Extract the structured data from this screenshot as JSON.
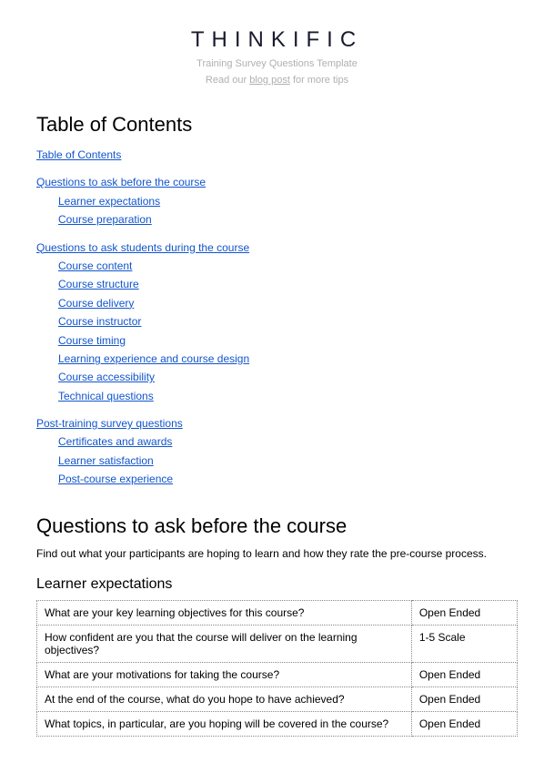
{
  "header": {
    "logo_text": "THINKIFIC",
    "subtitle_prefix": "Training Survey Questions Template",
    "subtitle_read": "Read our ",
    "subtitle_link": "blog post",
    "subtitle_suffix": " for more tips"
  },
  "toc": {
    "title": "Table of Contents",
    "groups": [
      {
        "top": "Table of Contents",
        "children": []
      },
      {
        "top": "Questions to ask before the course",
        "children": [
          "Learner expectations",
          "Course preparation"
        ]
      },
      {
        "top": "Questions to ask students during the course",
        "children": [
          "Course content",
          "Course structure",
          "Course delivery",
          "Course instructor",
          "Course timing",
          "Learning experience and course design",
          "Course accessibility",
          "Technical questions"
        ]
      },
      {
        "top": "Post-training survey questions",
        "children": [
          "Certificates and awards",
          "Learner satisfaction",
          "Post-course experience"
        ]
      }
    ]
  },
  "section1": {
    "title": "Questions to ask before the course",
    "intro": "Find out what your participants are hoping to learn and how they rate the pre-course process.",
    "sub1": {
      "title": "Learner expectations",
      "rows": [
        {
          "q": "What are your key learning objectives for this course?",
          "t": "Open Ended"
        },
        {
          "q": "How confident are you that the course will deliver on the learning objectives?",
          "t": "1-5 Scale"
        },
        {
          "q": "What are your motivations for taking the course?",
          "t": "Open Ended"
        },
        {
          "q": "At the end of the course, what do you hope to have achieved?",
          "t": "Open Ended"
        },
        {
          "q": "What topics, in particular, are you hoping will be covered in the course?",
          "t": "Open Ended"
        }
      ]
    }
  },
  "styles": {
    "link_color": "#1155cc",
    "border_style": "dotted",
    "font_family": "Arial"
  }
}
